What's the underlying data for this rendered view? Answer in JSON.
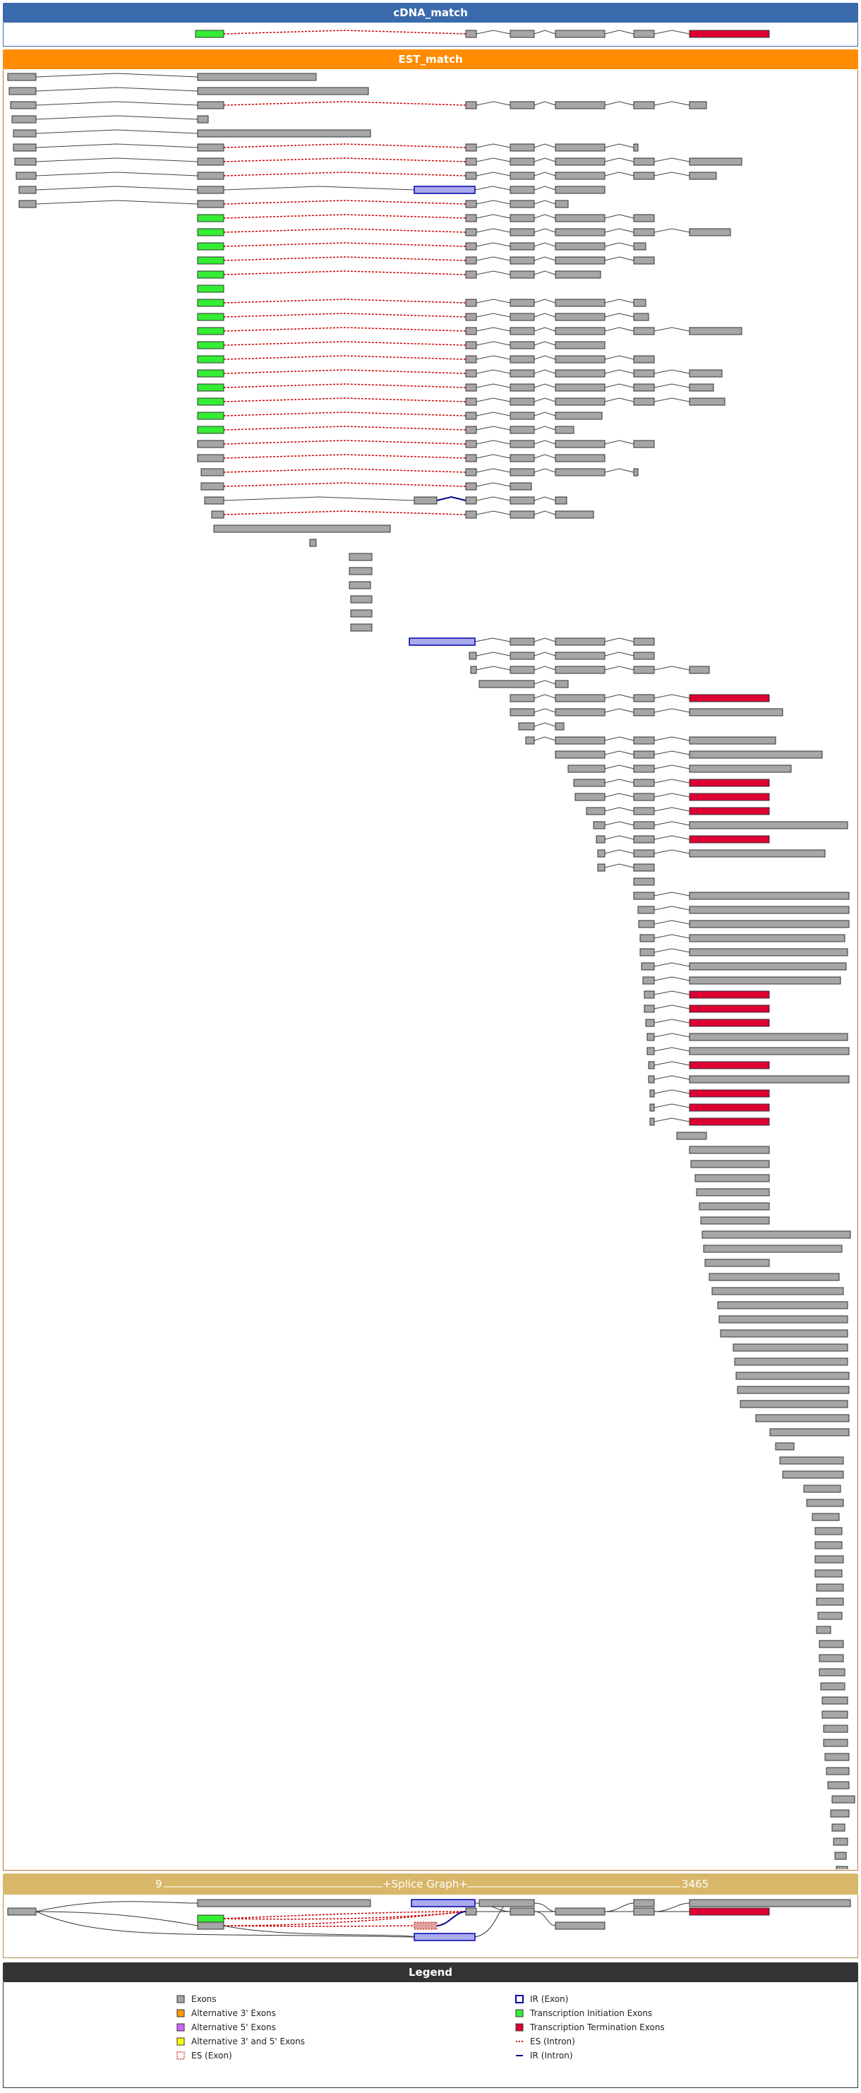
{
  "colors": {
    "exon": "#a6a6a6",
    "alt3": "#ff9900",
    "alt5": "#cc66ff",
    "alt35": "#ffff00",
    "init": "#33ee33",
    "term": "#dd0033",
    "ir_fill": "#aaaaee",
    "ir_border": "#0000aa",
    "es_line": "#cc0000",
    "ir_line": "#000088"
  },
  "cdna": {
    "title": "cDNA_match"
  },
  "est": {
    "title": "EST_match"
  },
  "splice": {
    "title": "+Splice Graph+",
    "start": "9",
    "end": "3465"
  },
  "legend": {
    "title": "Legend",
    "items": [
      {
        "label": "Exons",
        "kind": "exon"
      },
      {
        "label": "Alternative 3' Exons",
        "kind": "alt3"
      },
      {
        "label": "Alternative 5' Exons",
        "kind": "alt5"
      },
      {
        "label": "Alternative 3' and 5' Exons",
        "kind": "alt35"
      },
      {
        "label": "ES (Exon)",
        "kind": "es_exon"
      },
      {
        "label": "IR (Exon)",
        "kind": "ir_exon"
      },
      {
        "label": "Transcription Initiation Exons",
        "kind": "init"
      },
      {
        "label": "Transcription Termination Exons",
        "kind": "term"
      },
      {
        "label": "ES (Intron)",
        "kind": "es_intron"
      },
      {
        "label": "IR (Intron)",
        "kind": "ir_intron"
      }
    ]
  }
}
